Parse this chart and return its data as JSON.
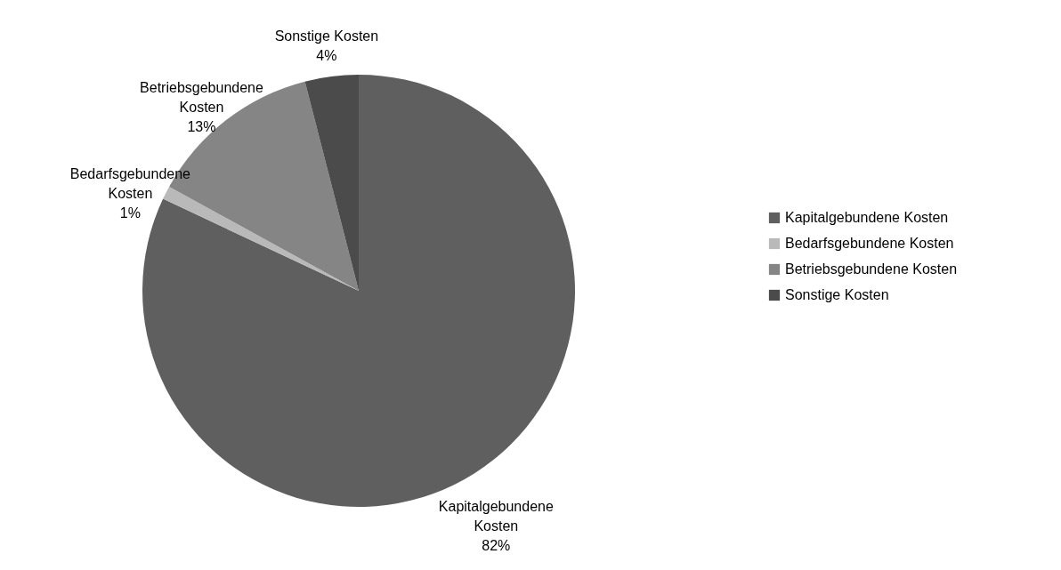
{
  "chart_data": {
    "type": "pie",
    "categories": [
      "Kapitalgebundene Kosten",
      "Bedarfsgebundene Kosten",
      "Betriebsgebundene Kosten",
      "Sonstige Kosten"
    ],
    "values": [
      82,
      1,
      13,
      4
    ],
    "colors": [
      "#5f5f5f",
      "#b9b9b9",
      "#858585",
      "#4b4b4b"
    ],
    "value_labels": [
      "82%",
      "1%",
      "13%",
      "4%"
    ],
    "legend": "right"
  }
}
